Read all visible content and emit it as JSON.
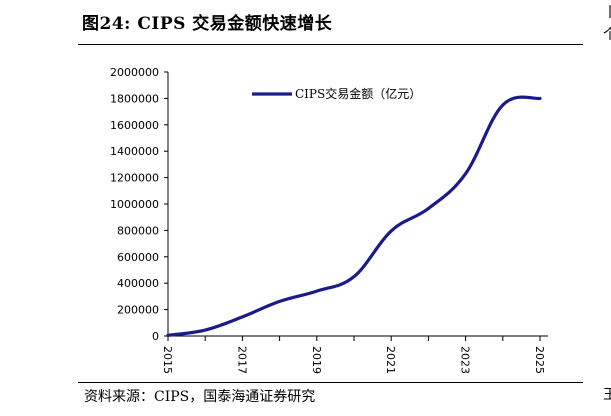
{
  "header": {
    "title": "图24:  CIPS 交易金额快速增长"
  },
  "footer": {
    "source": "资料来源：CIPS，国泰海通证券研究"
  },
  "edge": {
    "top_glyph_1": "丨",
    "top_glyph_2": "个",
    "bottom_glyph": "玉"
  },
  "colors": {
    "series": "#1a1a8c"
  },
  "chart_data": {
    "type": "line",
    "x": [
      2015,
      2016,
      2017,
      2018,
      2019,
      2020,
      2021,
      2022,
      2023,
      2024,
      2025
    ],
    "series": [
      {
        "name": "CIPS交易金额（亿元）",
        "values": [
          4800,
          45000,
          145000,
          262000,
          340000,
          450000,
          796000,
          966000,
          1230000,
          1750000,
          1800000
        ]
      }
    ],
    "xticks": [
      "2015",
      "2017",
      "2019",
      "2021",
      "2023",
      "2025"
    ],
    "yticks": [
      "0",
      "200000",
      "400000",
      "600000",
      "800000",
      "1000000",
      "1200000",
      "1400000",
      "1600000",
      "1800000",
      "2000000"
    ],
    "xlim": [
      2015,
      2025
    ],
    "ylim": [
      0,
      2000000
    ],
    "legend_position": "top-center",
    "grid": false
  }
}
